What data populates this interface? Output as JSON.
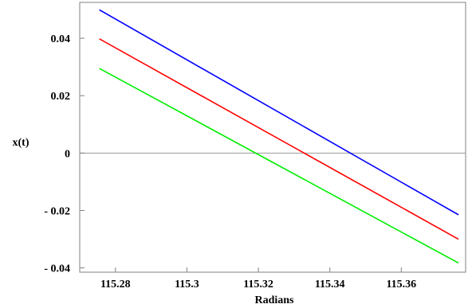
{
  "chart_data": {
    "type": "line",
    "xlabel": "Radians",
    "ylabel": "x(t)",
    "xlim": [
      115.27,
      115.378
    ],
    "ylim": [
      -0.0415,
      0.0525
    ],
    "x_ticks": [
      115.28,
      115.3,
      115.32,
      115.34,
      115.36
    ],
    "x_tick_labels": [
      "115.28",
      "115.3",
      "115.32",
      "115.34",
      "115.36"
    ],
    "y_ticks": [
      0.04,
      0.02,
      0,
      -0.02,
      -0.04
    ],
    "y_tick_labels": [
      "0.04",
      "0.02",
      "0",
      "- 0.02",
      "- 0.04"
    ],
    "zero_line": true,
    "grid": false,
    "series": [
      {
        "color": "#0000ff",
        "x": [
          115.2755,
          115.376
        ],
        "y": [
          0.0499,
          -0.0215
        ]
      },
      {
        "color": "#ff0000",
        "x": [
          115.2755,
          115.376
        ],
        "y": [
          0.0398,
          -0.03
        ]
      },
      {
        "color": "#00ee00",
        "x": [
          115.2755,
          115.376
        ],
        "y": [
          0.0295,
          -0.0383
        ]
      }
    ]
  }
}
